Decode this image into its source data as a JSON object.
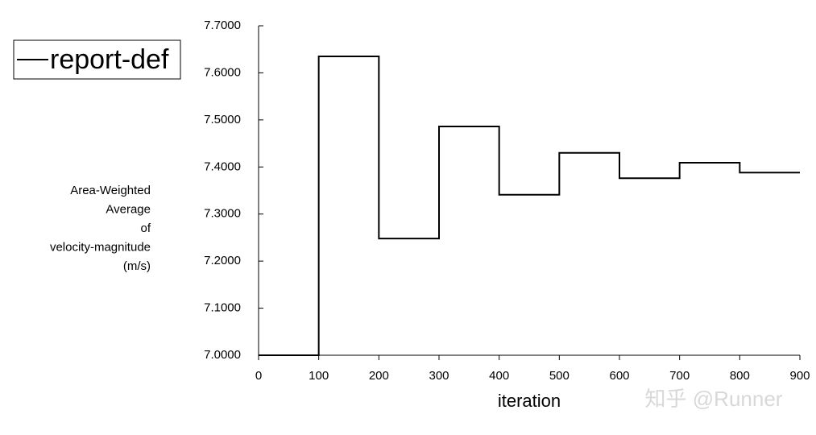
{
  "chart_data": {
    "type": "line",
    "x": [
      0,
      100,
      100,
      200,
      200,
      300,
      300,
      400,
      400,
      500,
      500,
      600,
      600,
      700,
      700,
      800,
      800,
      900
    ],
    "series": [
      {
        "name": "report-def",
        "color": "#000000",
        "values": [
          7.0,
          7.0,
          7.635,
          7.635,
          7.248,
          7.248,
          7.486,
          7.486,
          7.341,
          7.341,
          7.43,
          7.43,
          7.376,
          7.376,
          7.409,
          7.409,
          7.388,
          7.388
        ]
      }
    ],
    "xlabel": "iteration",
    "ylabel": [
      "Area-Weighted",
      "Average",
      "of",
      "velocity-magnitude",
      "(m/s)"
    ],
    "xlim": [
      0,
      900
    ],
    "xticks": [
      0,
      100,
      200,
      300,
      400,
      500,
      600,
      700,
      800,
      900
    ],
    "ylim": [
      7.0,
      7.7
    ],
    "yticks": [
      {
        "value": 7.0,
        "label": "7.0000"
      },
      {
        "value": 7.1,
        "label": "7.1000"
      },
      {
        "value": 7.2,
        "label": "7.2000"
      },
      {
        "value": 7.3,
        "label": "7.3000"
      },
      {
        "value": 7.4,
        "label": "7.4000"
      },
      {
        "value": 7.5,
        "label": "7.5000"
      },
      {
        "value": 7.6,
        "label": "7.6000"
      },
      {
        "value": 7.7,
        "label": "7.7000"
      }
    ],
    "legend": "upper left",
    "annotation": "知乎 @Runner"
  }
}
